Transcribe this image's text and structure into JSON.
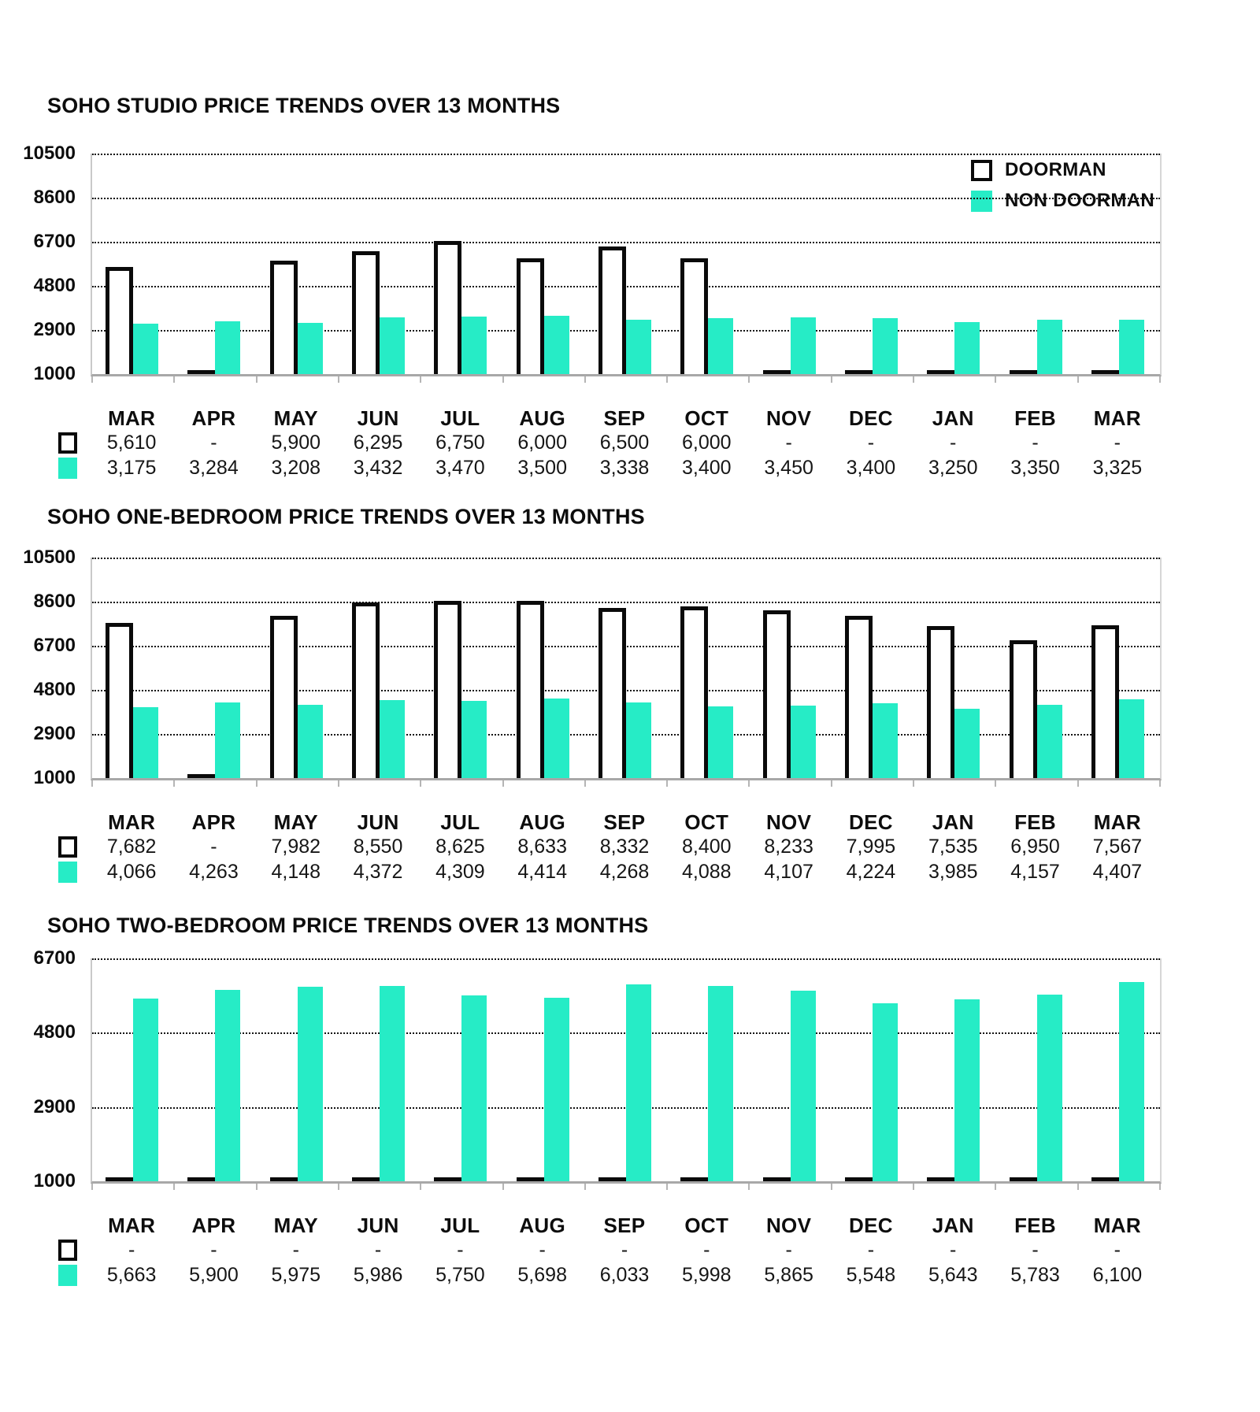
{
  "colors": {
    "non_doorman": "#26ECC6",
    "doorman_fill": "#ffffff",
    "doorman_border": "#0a0a0a",
    "axis": "#a8a8a8",
    "grid": "#141414"
  },
  "legend": {
    "items": [
      {
        "label": "DOORMAN",
        "swatch": "white-outlined-square"
      },
      {
        "label": "NON DOORMAN",
        "swatch": "teal-square"
      }
    ]
  },
  "chart_data": [
    {
      "type": "bar",
      "title": "SOHO STUDIO PRICE TRENDS OVER 13 MONTHS",
      "categories": [
        "MAR",
        "APR",
        "MAY",
        "JUN",
        "JUL",
        "AUG",
        "SEP",
        "OCT",
        "NOV",
        "DEC",
        "JAN",
        "FEB",
        "MAR"
      ],
      "yticks": [
        10500,
        8600,
        6700,
        4800,
        2900,
        1000
      ],
      "ylim": [
        1000,
        10500
      ],
      "grid": "horizontal-dotted",
      "legend_position": "top-right",
      "series": [
        {
          "name": "DOORMAN",
          "values": [
            5610,
            null,
            5900,
            6295,
            6750,
            6000,
            6500,
            6000,
            null,
            null,
            null,
            null,
            null
          ],
          "labels": [
            "5,610",
            "-",
            "5,900",
            "6,295",
            "6,750",
            "6,000",
            "6,500",
            "6,000",
            "-",
            "-",
            "-",
            "-",
            "-"
          ]
        },
        {
          "name": "NON DOORMAN",
          "values": [
            3175,
            3284,
            3208,
            3432,
            3470,
            3500,
            3338,
            3400,
            3450,
            3400,
            3250,
            3350,
            3325
          ],
          "labels": [
            "3,175",
            "3,284",
            "3,208",
            "3,432",
            "3,470",
            "3,500",
            "3,338",
            "3,400",
            "3,450",
            "3,400",
            "3,250",
            "3,350",
            "3,325"
          ]
        }
      ]
    },
    {
      "type": "bar",
      "title": "SOHO ONE-BEDROOM PRICE TRENDS OVER 13 MONTHS",
      "categories": [
        "MAR",
        "APR",
        "MAY",
        "JUN",
        "JUL",
        "AUG",
        "SEP",
        "OCT",
        "NOV",
        "DEC",
        "JAN",
        "FEB",
        "MAR"
      ],
      "yticks": [
        10500,
        8600,
        6700,
        4800,
        2900,
        1000
      ],
      "ylim": [
        1000,
        10500
      ],
      "grid": "horizontal-dotted",
      "legend_position": "top-right",
      "series": [
        {
          "name": "DOORMAN",
          "values": [
            7682,
            null,
            7982,
            8550,
            8625,
            8633,
            8332,
            8400,
            8233,
            7995,
            7535,
            6950,
            7567
          ],
          "labels": [
            "7,682",
            "-",
            "7,982",
            "8,550",
            "8,625",
            "8,633",
            "8,332",
            "8,400",
            "8,233",
            "7,995",
            "7,535",
            "6,950",
            "7,567"
          ]
        },
        {
          "name": "NON DOORMAN",
          "values": [
            4066,
            4263,
            4148,
            4372,
            4309,
            4414,
            4268,
            4088,
            4107,
            4224,
            3985,
            4157,
            4407
          ],
          "labels": [
            "4,066",
            "4,263",
            "4,148",
            "4,372",
            "4,309",
            "4,414",
            "4,268",
            "4,088",
            "4,107",
            "4,224",
            "3,985",
            "4,157",
            "4,407"
          ]
        }
      ]
    },
    {
      "type": "bar",
      "title": "SOHO TWO-BEDROOM PRICE TRENDS OVER 13 MONTHS",
      "categories": [
        "MAR",
        "APR",
        "MAY",
        "JUN",
        "JUL",
        "AUG",
        "SEP",
        "OCT",
        "NOV",
        "DEC",
        "JAN",
        "FEB",
        "MAR"
      ],
      "yticks": [
        6700,
        4800,
        2900,
        1000
      ],
      "ylim": [
        1000,
        6700
      ],
      "grid": "horizontal-dotted",
      "legend_position": "top-right",
      "series": [
        {
          "name": "DOORMAN",
          "values": [
            null,
            null,
            null,
            null,
            null,
            null,
            null,
            null,
            null,
            null,
            null,
            null,
            null
          ],
          "labels": [
            "-",
            "-",
            "-",
            "-",
            "-",
            "-",
            "-",
            "-",
            "-",
            "-",
            "-",
            "-",
            "-"
          ]
        },
        {
          "name": "NON DOORMAN",
          "values": [
            5663,
            5900,
            5975,
            5986,
            5750,
            5698,
            6033,
            5998,
            5865,
            5548,
            5643,
            5783,
            6100
          ],
          "labels": [
            "5,663",
            "5,900",
            "5,975",
            "5,986",
            "5,750",
            "5,698",
            "6,033",
            "5,998",
            "5,865",
            "5,548",
            "5,643",
            "5,783",
            "6,100"
          ]
        }
      ]
    }
  ]
}
